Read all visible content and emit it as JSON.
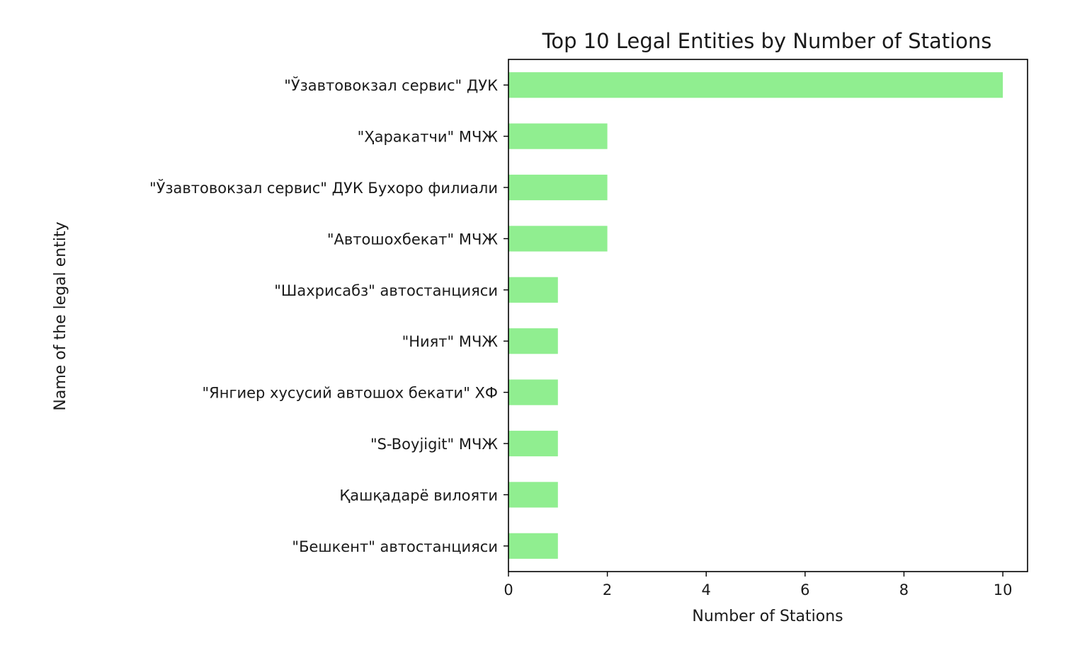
{
  "chart_data": {
    "type": "bar",
    "orientation": "horizontal",
    "title": "Top 10 Legal Entities by Number of Stations",
    "xlabel": "Number of Stations",
    "ylabel": "Name of the legal entity",
    "categories": [
      "\"Ўзавтовокзал сервис\" ДУК",
      "\"Ҳаракатчи\" МЧЖ",
      "\"Ўзавтовокзал сервис\" ДУК Бухоро филиали",
      "\"Автошохбекат\" МЧЖ",
      "\"Шахрисабз\" автостанцияси",
      "\"Ният\" МЧЖ",
      "\"Янгиер хусусий автошох бекати\" ХФ",
      "\"S-Boyjigit\" МЧЖ",
      "Қашқадарё вилояти",
      "\"Бешкент\" автостанцияси"
    ],
    "values": [
      10,
      2,
      2,
      2,
      1,
      1,
      1,
      1,
      1,
      1
    ],
    "xlim": [
      0,
      10.5
    ],
    "xticks": [
      0,
      2,
      4,
      6,
      8,
      10
    ],
    "xtick_labels": [
      "0",
      "2",
      "4",
      "6",
      "8",
      "10"
    ],
    "bar_color": "#90ee90",
    "grid": false,
    "legend": "none"
  }
}
